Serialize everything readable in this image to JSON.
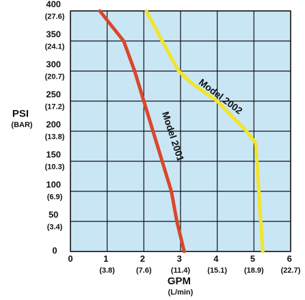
{
  "chart_data": {
    "type": "line",
    "xlabel": "GPM (L/min)",
    "ylabel": "PSI (BAR)",
    "xlim": [
      0,
      6
    ],
    "ylim": [
      0,
      400
    ],
    "xticks": [
      0,
      {
        "value": 1,
        "label": "1 (3.8)"
      },
      {
        "value": 2,
        "label": "2 (7.6)"
      },
      {
        "value": 3,
        "label": "3 (11.4)"
      },
      {
        "value": 4,
        "label": "4 (15.1)"
      },
      {
        "value": 5,
        "label": "5 (18.9)"
      },
      {
        "value": 6,
        "label": "6 (22.7)"
      }
    ],
    "yticks": [
      0,
      {
        "value": 50,
        "label": "50 (3.4)"
      },
      {
        "value": 100,
        "label": "100 (6.9)"
      },
      {
        "value": 150,
        "label": "150 (10.3)"
      },
      {
        "value": 200,
        "label": "200 (13.8)"
      },
      {
        "value": 250,
        "label": "250 (17.2)"
      },
      {
        "value": 300,
        "label": "300 (20.7)"
      },
      {
        "value": 350,
        "label": "350 (24.1)"
      },
      {
        "value": 400,
        "label": "400 (27.6)"
      }
    ],
    "grid": true,
    "series": [
      {
        "name": "Model 2001",
        "color": "#d9472b",
        "x": [
          0.8,
          1.45,
          1.75,
          2.0,
          2.25,
          2.5,
          2.75,
          2.9,
          3.1
        ],
        "values": [
          400,
          350,
          300,
          250,
          200,
          150,
          100,
          50,
          0
        ]
      },
      {
        "name": "Model 2002",
        "color": "#f2e52a",
        "x": [
          2.07,
          2.5,
          2.95,
          3.3,
          4.0,
          4.8,
          5.05,
          5.08,
          5.24
        ],
        "values": [
          400,
          350,
          300,
          280,
          250,
          200,
          180,
          150,
          0
        ]
      }
    ]
  }
}
